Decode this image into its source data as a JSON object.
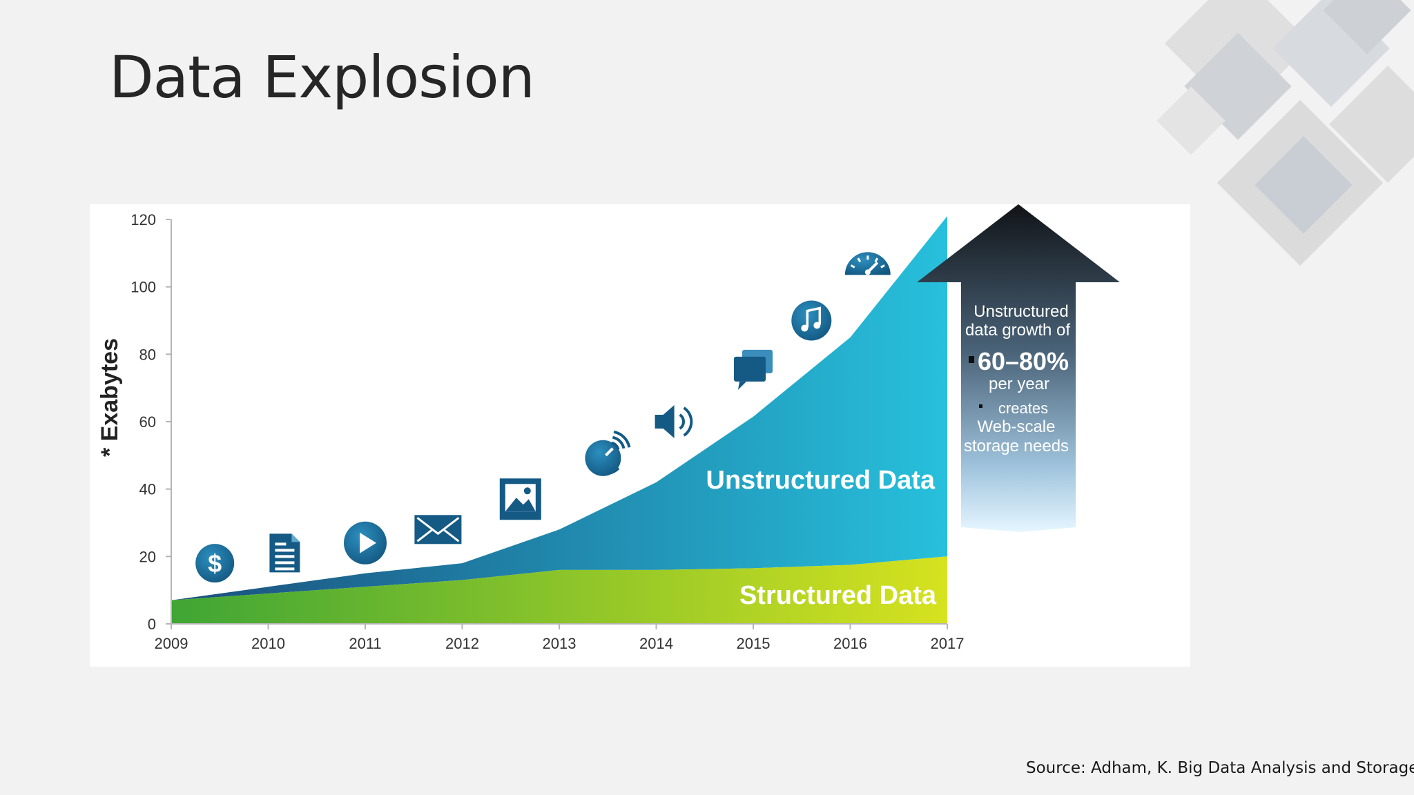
{
  "slide": {
    "title": "Data Explosion",
    "source": "Source: Adham, K. Big Data Analysis and Storage"
  },
  "chart_data": {
    "type": "area",
    "title": "",
    "xlabel": "",
    "ylabel": "* Exabytes",
    "x": [
      2009,
      2010,
      2011,
      2012,
      2013,
      2014,
      2015,
      2016,
      2017
    ],
    "xlim": [
      2009,
      2017
    ],
    "ylim": [
      0,
      120
    ],
    "yticks": [
      0,
      20,
      40,
      60,
      80,
      100,
      120
    ],
    "stacked": true,
    "grid": false,
    "legend": "none",
    "series": [
      {
        "name": "Structured Data",
        "values": [
          7,
          9,
          11,
          13,
          16,
          16,
          16.5,
          17.5,
          20
        ],
        "color_start": "#3fa535",
        "color_end": "#d6e21f"
      },
      {
        "name": "Unstructured Data",
        "values": [
          0,
          2,
          4,
          5,
          12,
          26,
          45,
          67.5,
          101
        ],
        "color_start": "#1a4f7c",
        "color_end": "#27c0dc"
      }
    ],
    "icons": [
      {
        "name": "dollar-icon",
        "year": 2009.45,
        "value": 18
      },
      {
        "name": "document-icon",
        "year": 2010.17,
        "value": 21
      },
      {
        "name": "play-icon",
        "year": 2011.0,
        "value": 24
      },
      {
        "name": "envelope-icon",
        "year": 2011.75,
        "value": 28
      },
      {
        "name": "image-icon",
        "year": 2012.6,
        "value": 37
      },
      {
        "name": "satellite-icon",
        "year": 2013.48,
        "value": 50
      },
      {
        "name": "speaker-icon",
        "year": 2014.2,
        "value": 60
      },
      {
        "name": "chat-icon",
        "year": 2015.0,
        "value": 76
      },
      {
        "name": "music-icon",
        "year": 2015.6,
        "value": 90
      },
      {
        "name": "speedometer-icon",
        "year": 2016.18,
        "value": 106
      }
    ],
    "callout": {
      "line1": "Unstructured",
      "line2": "data growth of",
      "highlight": "60–80%",
      "line3": "per year",
      "line4": "creates",
      "line5": "Web-scale",
      "line6": "storage needs"
    }
  }
}
